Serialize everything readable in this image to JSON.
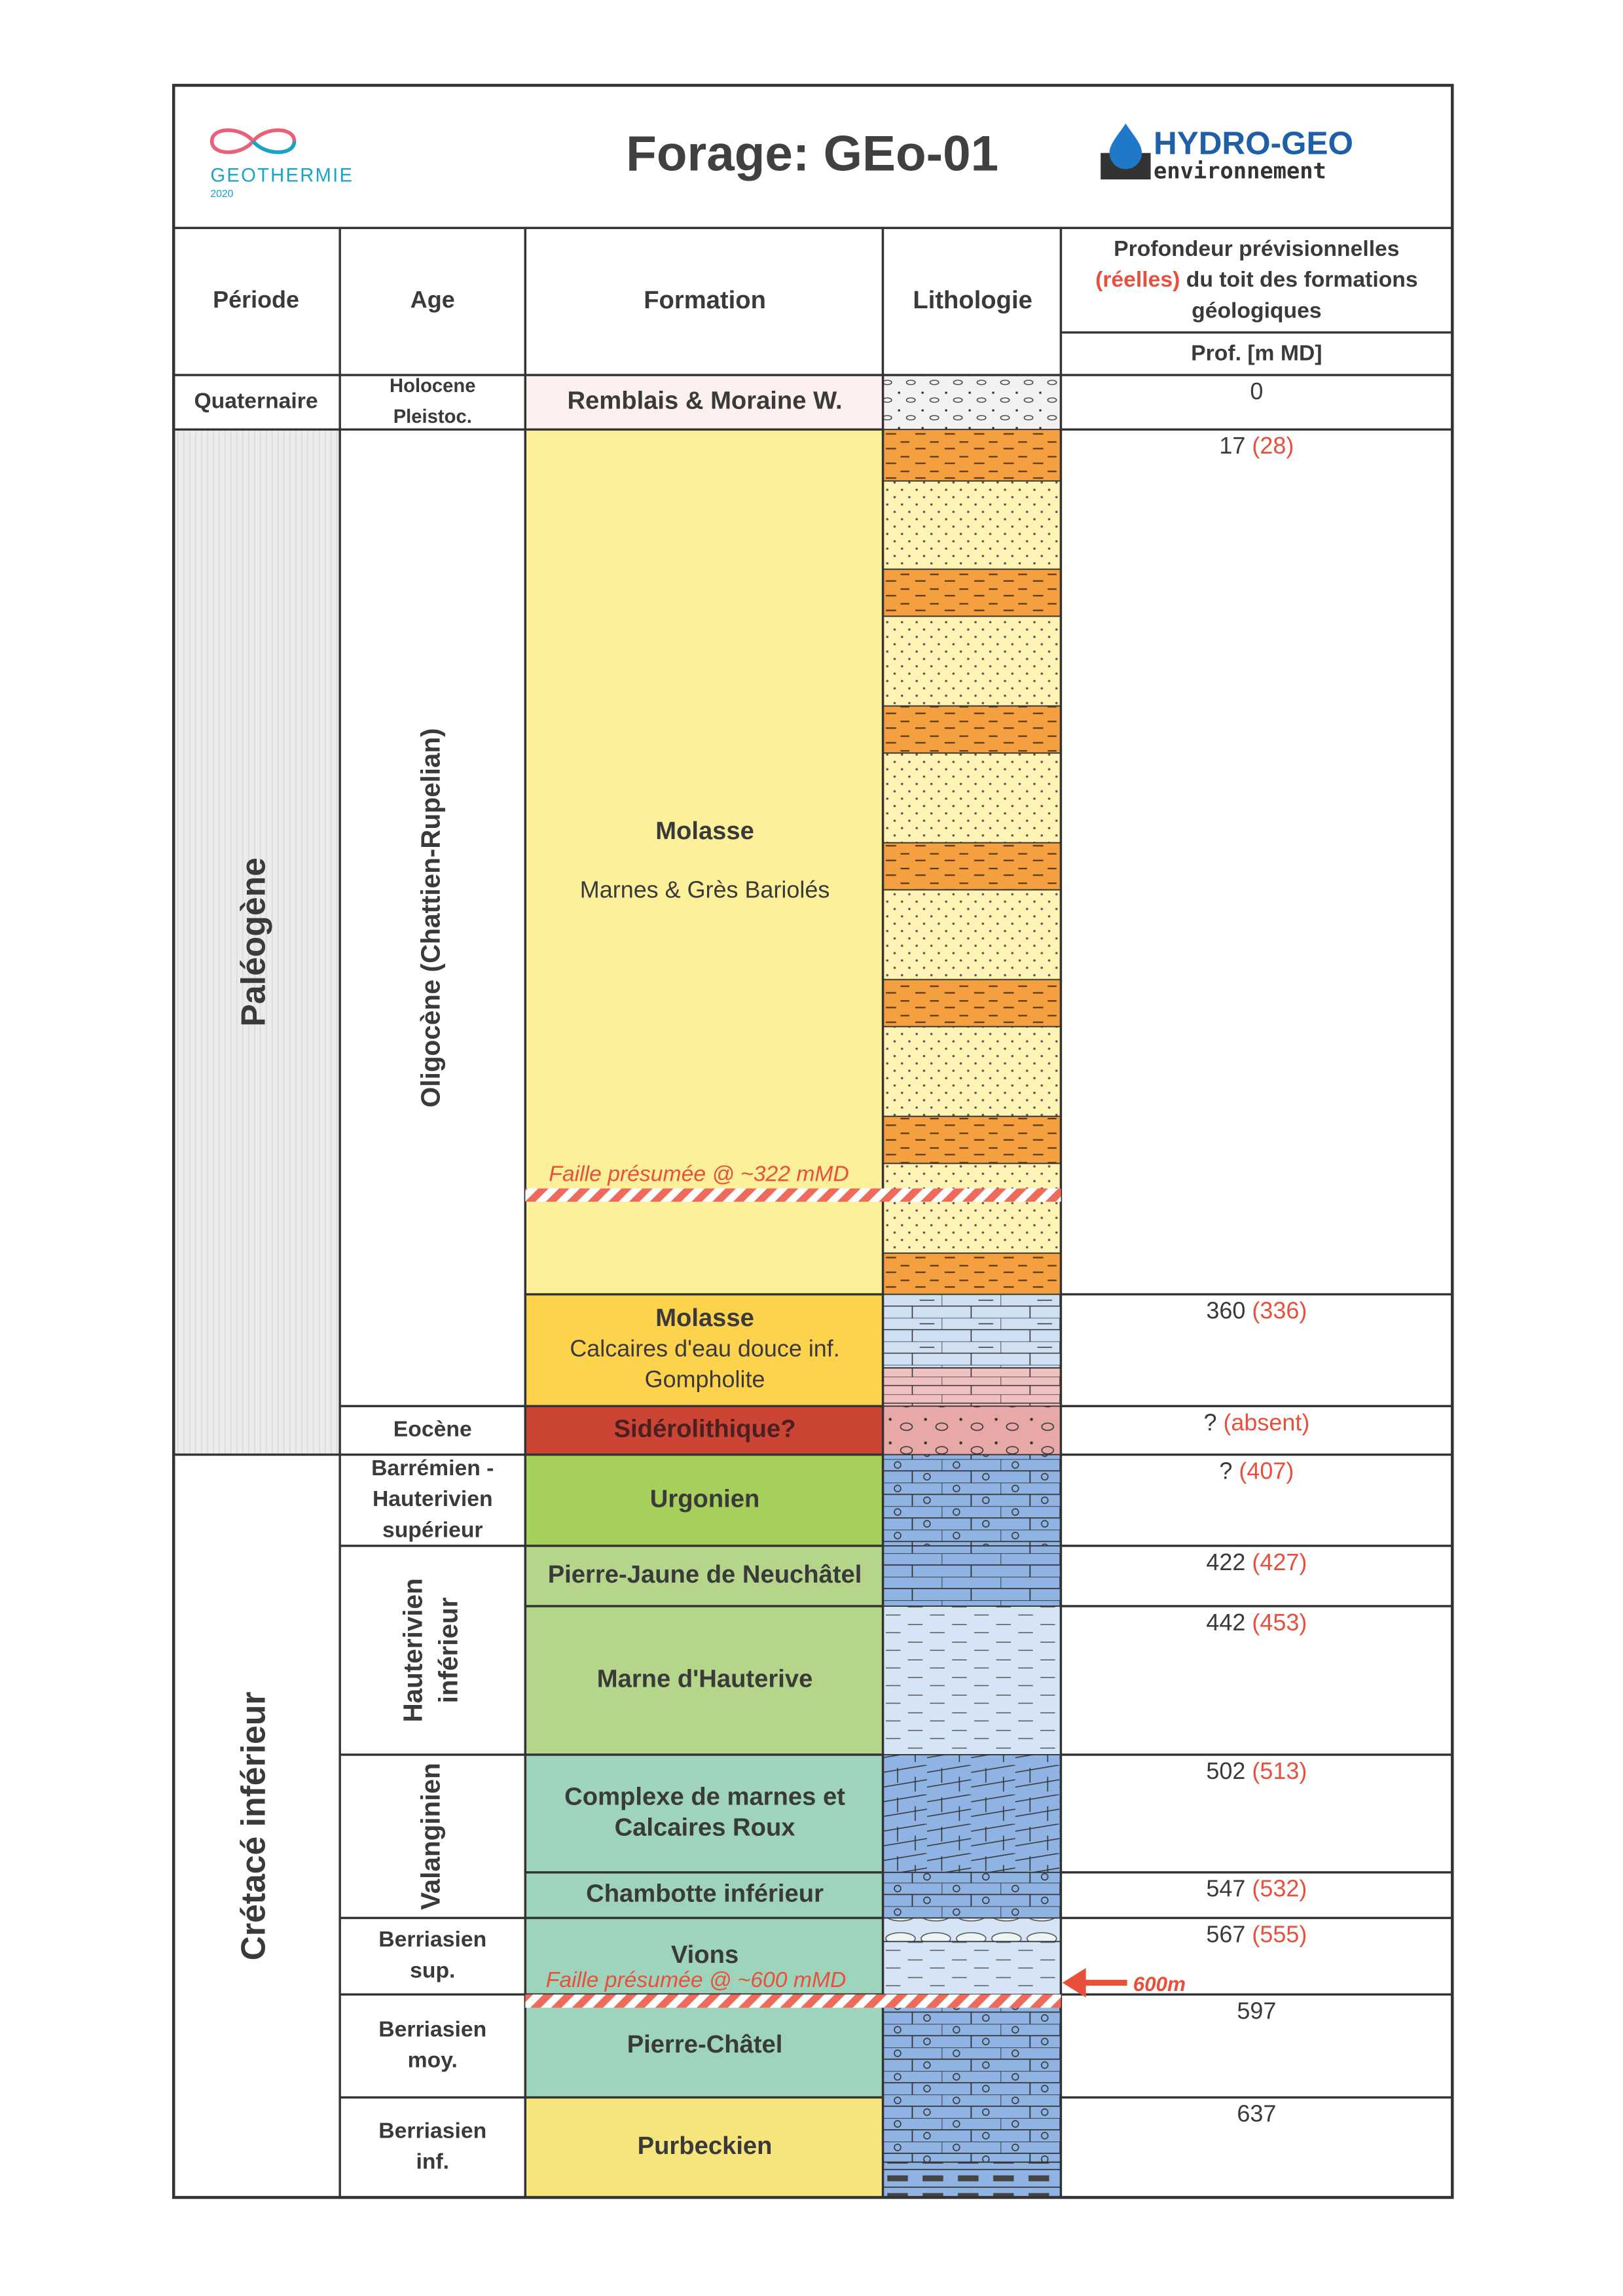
{
  "header": {
    "title": "Forage: GEo-01",
    "logo_left": {
      "name": "GEOTHERMIE",
      "year": "2020"
    },
    "logo_right": {
      "name": "HYDRO-GEO",
      "subtitle": "environnement"
    }
  },
  "columns": {
    "period": "Période",
    "age": "Age",
    "formation": "Formation",
    "lithology": "Lithologie",
    "depth": {
      "title": [
        "Profondeur prévisionnelles",
        "(réelles)",
        "du toit des formations",
        "géologiques"
      ],
      "unit": "Prof. [m MD]"
    }
  },
  "periods": [
    "Quaternaire",
    "Paléogène",
    "Crétacé inférieur"
  ],
  "ages": [
    [
      "Holocene",
      "Pleistoc."
    ],
    [
      "Oligocène (Chattien-Rupelian)"
    ],
    [
      "Eocène"
    ],
    [
      "Barrémien -",
      "Hauterivien",
      "supérieur"
    ],
    [
      "Hauterivien",
      "inférieur"
    ],
    [
      "Valanginien"
    ],
    [
      "Berriasien",
      "sup."
    ],
    [
      "Berriasien",
      "moy."
    ],
    [
      "Berriasien",
      "inf."
    ]
  ],
  "formations": [
    {
      "name": [
        "Remblais & Moraine W."
      ],
      "depth": "0"
    },
    {
      "name": [
        "Molasse"
      ],
      "description": [
        "Marnes & Grès Bariolés"
      ],
      "depth": "17",
      "depth_real": "(28)"
    },
    {
      "name": [
        "Molasse"
      ],
      "description": [
        "Calcaires d'eau douce inf.",
        "Gompholite"
      ],
      "depth": "360",
      "depth_real": "(336)"
    },
    {
      "name": [
        "Sidérolithique?"
      ],
      "depth": "?",
      "depth_real": "(absent)"
    },
    {
      "name": [
        "Urgonien"
      ],
      "depth": "?",
      "depth_real": "(407)"
    },
    {
      "name": [
        "Pierre-Jaune de Neuchâtel"
      ],
      "depth": "422",
      "depth_real": "(427)"
    },
    {
      "name": [
        "Marne d'Hauterive"
      ],
      "depth": "442",
      "depth_real": "(453)"
    },
    {
      "name": [
        "Complexe de marnes et",
        "Calcaires Roux"
      ],
      "depth": "502",
      "depth_real": "(513)"
    },
    {
      "name": [
        "Chambotte inférieur"
      ],
      "depth": "547",
      "depth_real": "(532)"
    },
    {
      "name": [
        "Vions"
      ],
      "depth": "567",
      "depth_real": "(555)"
    },
    {
      "name": [
        "Pierre-Châtel"
      ],
      "depth": "597"
    },
    {
      "name": [
        "Purbeckien"
      ],
      "depth": "637"
    }
  ],
  "faults": [
    {
      "label": "Faille présumée @ ~322 mMD"
    },
    {
      "label": "Faille présumée @ ~600 mMD",
      "marker": "600m"
    }
  ]
}
